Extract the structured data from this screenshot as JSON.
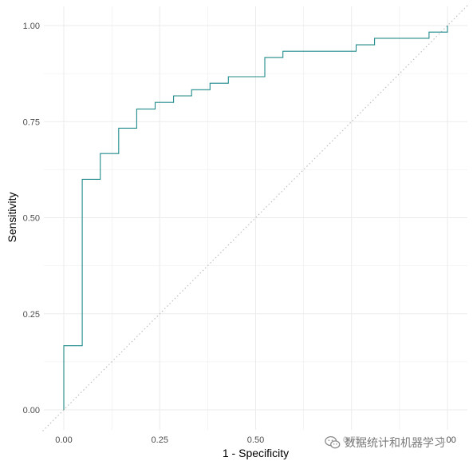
{
  "chart_data": {
    "type": "line",
    "title": "",
    "xlabel": "1 - Specificity",
    "ylabel": "Sensitivity",
    "xlim": [
      0,
      1
    ],
    "ylim": [
      0,
      1
    ],
    "xticks": [
      "0.00",
      "0.25",
      "0.50",
      "0.75",
      "1.00"
    ],
    "yticks": [
      "0.00",
      "0.25",
      "0.50",
      "0.75",
      "1.00"
    ],
    "grid": true,
    "legend": "none",
    "colors": {
      "roc": "#1f8a8a",
      "diagonal": "#bfbfbf",
      "grid": "#ebebeb"
    },
    "series": [
      {
        "points": [
          [
            0.0,
            0.0
          ],
          [
            0.0,
            0.167
          ],
          [
            0.048,
            0.167
          ],
          [
            0.048,
            0.6
          ],
          [
            0.095,
            0.6
          ],
          [
            0.095,
            0.667
          ],
          [
            0.143,
            0.667
          ],
          [
            0.143,
            0.733
          ],
          [
            0.19,
            0.733
          ],
          [
            0.19,
            0.783
          ],
          [
            0.238,
            0.783
          ],
          [
            0.238,
            0.8
          ],
          [
            0.286,
            0.8
          ],
          [
            0.286,
            0.817
          ],
          [
            0.333,
            0.817
          ],
          [
            0.333,
            0.833
          ],
          [
            0.381,
            0.833
          ],
          [
            0.381,
            0.85
          ],
          [
            0.429,
            0.85
          ],
          [
            0.429,
            0.867
          ],
          [
            0.524,
            0.867
          ],
          [
            0.524,
            0.917
          ],
          [
            0.571,
            0.917
          ],
          [
            0.571,
            0.933
          ],
          [
            0.762,
            0.933
          ],
          [
            0.762,
            0.95
          ],
          [
            0.81,
            0.95
          ],
          [
            0.81,
            0.967
          ],
          [
            0.952,
            0.967
          ],
          [
            0.952,
            0.983
          ],
          [
            1.0,
            0.983
          ],
          [
            1.0,
            1.0
          ]
        ]
      }
    ],
    "reference_line": {
      "points": [
        [
          0,
          0
        ],
        [
          1,
          1
        ]
      ],
      "style": "dotted"
    }
  },
  "watermark": {
    "text": "数据统计和机器学习",
    "icon": "wechat-icon"
  }
}
